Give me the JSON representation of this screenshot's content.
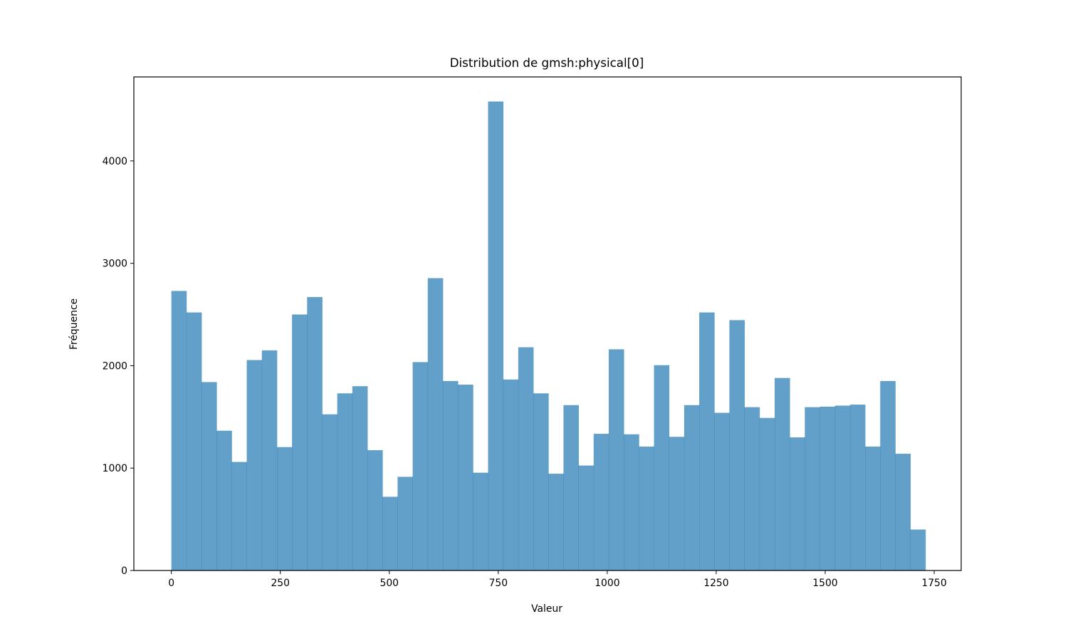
{
  "chart_data": {
    "type": "bar",
    "title": "Distribution de gmsh:physical[0]",
    "xlabel": "Valeur",
    "ylabel": "Fréquence",
    "bar_color": "#1f77b4",
    "bar_opacity": 0.7,
    "xlim": [
      -86,
      1812
    ],
    "ylim": [
      0,
      4820
    ],
    "xticks": [
      0,
      250,
      500,
      750,
      1000,
      1250,
      1500,
      1750
    ],
    "yticks": [
      0,
      1000,
      2000,
      3000,
      4000
    ],
    "bin_edges": [
      0,
      34.6,
      69.2,
      103.8,
      138.4,
      173,
      207.6,
      242.2,
      276.8,
      311.4,
      346,
      380.6,
      415.2,
      449.8,
      484.4,
      519,
      553.6,
      588.2,
      622.8,
      657.4,
      692,
      726.6,
      761.2,
      795.8,
      830.4,
      865,
      899.6,
      934.2,
      968.8,
      1003.4,
      1038,
      1072.6,
      1107.2,
      1141.8,
      1176.4,
      1211,
      1245.6,
      1280.2,
      1314.8,
      1349.4,
      1384,
      1418.6,
      1453.2,
      1487.8,
      1522.4,
      1557,
      1591.6,
      1626.2,
      1660.8,
      1695.4,
      1730
    ],
    "values": [
      2730,
      2520,
      1840,
      1365,
      1060,
      2055,
      2150,
      1205,
      2500,
      2670,
      1525,
      1730,
      1800,
      1175,
      720,
      915,
      2035,
      2855,
      1850,
      1815,
      955,
      4580,
      1865,
      2180,
      1730,
      945,
      1615,
      1025,
      1335,
      2160,
      1330,
      1210,
      2005,
      1305,
      1615,
      2520,
      1540,
      2445,
      1595,
      1490,
      1880,
      1300,
      1595,
      1600,
      1610,
      1620,
      1210,
      1850,
      1140,
      400
    ]
  }
}
